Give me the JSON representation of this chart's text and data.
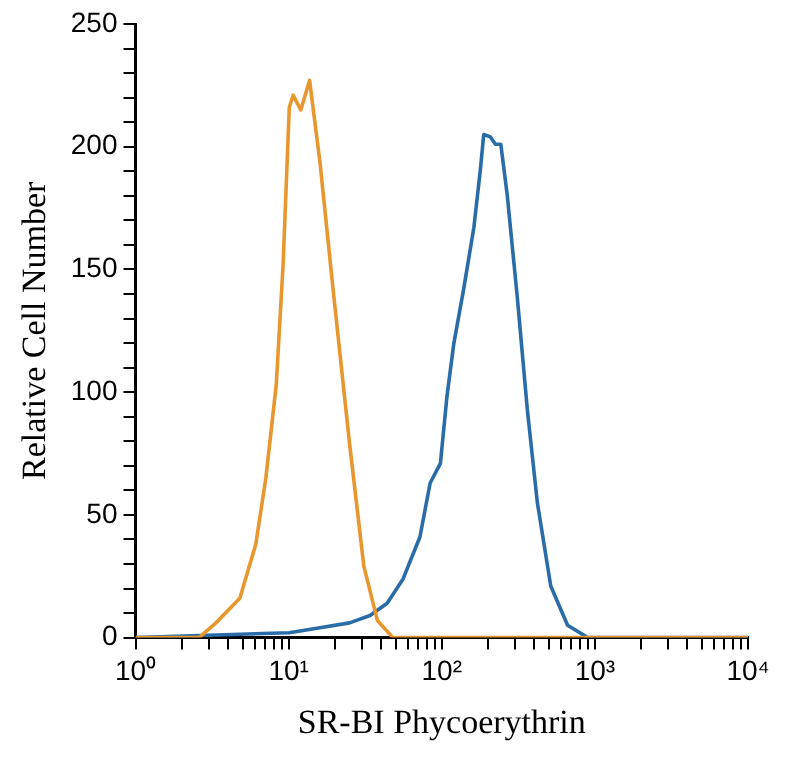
{
  "chart_data": {
    "type": "line",
    "xlabel": "SR-BI Phycoerythrin",
    "ylabel": "Relative Cell Number",
    "log": "x",
    "grid": false,
    "legend": false,
    "marker": "none",
    "line_style": "solid",
    "xlim": [
      1,
      10000
    ],
    "ylim": [
      0,
      250
    ],
    "xticks": [
      {
        "value": 1,
        "label": "10⁰"
      },
      {
        "value": 2,
        "label": null
      },
      {
        "value": 3,
        "label": null
      },
      {
        "value": 4,
        "label": null
      },
      {
        "value": 5,
        "label": null
      },
      {
        "value": 6,
        "label": null
      },
      {
        "value": 7,
        "label": null
      },
      {
        "value": 8,
        "label": null
      },
      {
        "value": 9,
        "label": null
      },
      {
        "value": 10,
        "label": "10¹"
      },
      {
        "value": 20,
        "label": null
      },
      {
        "value": 30,
        "label": null
      },
      {
        "value": 40,
        "label": null
      },
      {
        "value": 50,
        "label": null
      },
      {
        "value": 60,
        "label": null
      },
      {
        "value": 70,
        "label": null
      },
      {
        "value": 80,
        "label": null
      },
      {
        "value": 90,
        "label": null
      },
      {
        "value": 100,
        "label": "10²"
      },
      {
        "value": 200,
        "label": null
      },
      {
        "value": 300,
        "label": null
      },
      {
        "value": 400,
        "label": null
      },
      {
        "value": 500,
        "label": null
      },
      {
        "value": 600,
        "label": null
      },
      {
        "value": 700,
        "label": null
      },
      {
        "value": 800,
        "label": null
      },
      {
        "value": 900,
        "label": null
      },
      {
        "value": 1000,
        "label": "10³"
      },
      {
        "value": 2000,
        "label": null
      },
      {
        "value": 3000,
        "label": null
      },
      {
        "value": 4000,
        "label": null
      },
      {
        "value": 5000,
        "label": null
      },
      {
        "value": 6000,
        "label": null
      },
      {
        "value": 7000,
        "label": null
      },
      {
        "value": 8000,
        "label": null
      },
      {
        "value": 9000,
        "label": null
      },
      {
        "value": 10000,
        "label": "10⁴"
      }
    ],
    "yticks": [
      0,
      {
        "value": 10,
        "label": null
      },
      {
        "value": 20,
        "label": null
      },
      {
        "value": 30,
        "label": null
      },
      {
        "value": 40,
        "label": null
      },
      50,
      {
        "value": 60,
        "label": null
      },
      {
        "value": 70,
        "label": null
      },
      {
        "value": 80,
        "label": null
      },
      {
        "value": 90,
        "label": null
      },
      100,
      {
        "value": 110,
        "label": null
      },
      {
        "value": 120,
        "label": null
      },
      {
        "value": 130,
        "label": null
      },
      {
        "value": 140,
        "label": null
      },
      150,
      {
        "value": 160,
        "label": null
      },
      {
        "value": 170,
        "label": null
      },
      {
        "value": 180,
        "label": null
      },
      {
        "value": 190,
        "label": null
      },
      200,
      {
        "value": 210,
        "label": null
      },
      {
        "value": 220,
        "label": null
      },
      {
        "value": 230,
        "label": null
      },
      {
        "value": 240,
        "label": null
      },
      250
    ],
    "series": [
      {
        "color": "#e8962e",
        "x": [
          1,
          2.6,
          3.35,
          4.8,
          6.1,
          7.1,
          8.3,
          9.2,
          10.1,
          10.7,
          12,
          13.7,
          16,
          19.5,
          25,
          31,
          38,
          48,
          10000
        ],
        "values": [
          0,
          0,
          6,
          16,
          38,
          65,
          103,
          152,
          216,
          221,
          215,
          227,
          194,
          142,
          79,
          29,
          7,
          0,
          0
        ]
      },
      {
        "color": "#2a6ca8",
        "x": [
          1,
          10.1,
          16,
          25,
          34,
          44,
          56,
          72,
          84,
          98,
          108,
          120,
          139,
          162,
          179,
          188,
          208,
          224,
          243,
          268,
          311,
          362,
          421,
          515,
          663,
          898,
          10000
        ],
        "values": [
          0,
          2,
          4,
          6,
          9,
          14,
          24,
          41,
          63,
          71,
          98,
          120,
          142,
          167,
          191,
          205,
          204,
          201,
          201,
          180,
          139,
          93,
          55,
          21,
          5,
          0,
          0
        ]
      }
    ]
  }
}
